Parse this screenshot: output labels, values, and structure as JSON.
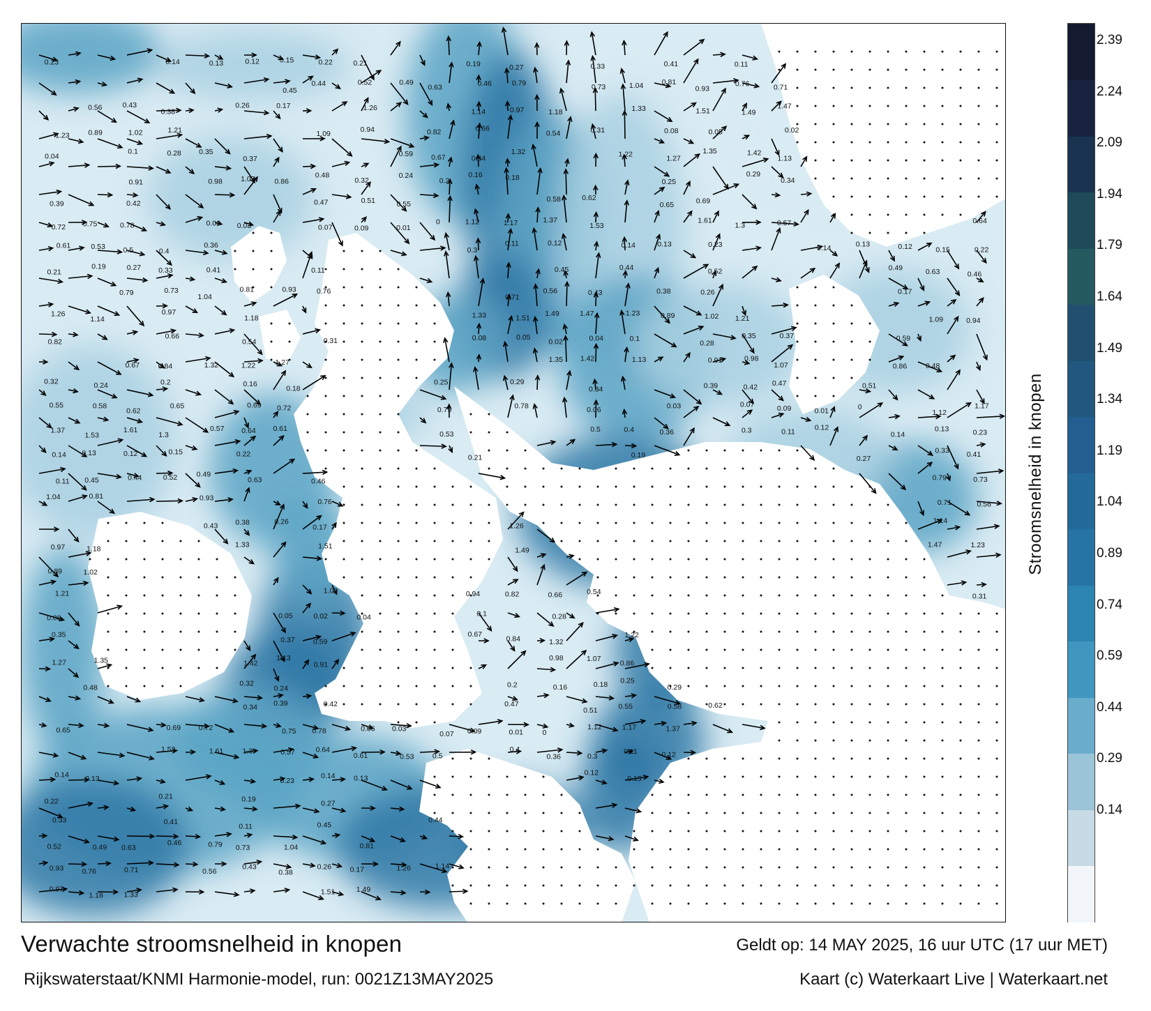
{
  "title": "Verwachte stroomsnelheid in knopen",
  "subtitle": "Rijkswaterstaat/KNMI Harmonie-model, run: 0021Z13MAY2025",
  "valid_time": "Geldt op: 14 MAY 2025, 16 uur UTC (17 uur MET)",
  "credit": "Kaart (c) Waterkaart Live | Waterkaart.net",
  "colorbar": {
    "label": "Stroomsnelheid in knopen",
    "ticks": [
      "2.39",
      "2.24",
      "2.09",
      "1.94",
      "1.79",
      "1.64",
      "1.49",
      "1.34",
      "1.19",
      "1.04",
      "0.89",
      "0.74",
      "0.59",
      "0.44",
      "0.29",
      "0.14"
    ],
    "colors": [
      "#f2f6fa",
      "#c6dbe6",
      "#9cc4d8",
      "#6aaccb",
      "#3f97bf",
      "#2b84b1",
      "#2674a4",
      "#236a9b",
      "#245e90",
      "#22577f",
      "#214f6f",
      "#245a60",
      "#1e4a5a",
      "#1a3350",
      "#18243f",
      "#141a30"
    ]
  },
  "map_colors": {
    "deep": "#2f78a6",
    "mid": "#5aa3c4",
    "light": "#a9d0e2",
    "pale": "#d9ebf3",
    "land": "#ffffff",
    "arrow": "#000000"
  },
  "speed_labels": [
    {
      "t": "0.23"
    },
    {
      "t": "0.14"
    },
    {
      "t": "0.13"
    },
    {
      "t": "0.12"
    },
    {
      "t": "0.15"
    },
    {
      "t": "0.22"
    },
    {
      "t": "0.21"
    },
    {
      "t": "0.19"
    },
    {
      "t": "0.27"
    },
    {
      "t": "0.33"
    },
    {
      "t": "0.41"
    },
    {
      "t": "0.11"
    },
    {
      "t": "0.45"
    },
    {
      "t": "0.44"
    },
    {
      "t": "0.52"
    },
    {
      "t": "0.49"
    },
    {
      "t": "0.63"
    },
    {
      "t": "0.46"
    },
    {
      "t": "0.79"
    },
    {
      "t": "0.73"
    },
    {
      "t": "1.04"
    },
    {
      "t": "0.81"
    },
    {
      "t": "0.93"
    },
    {
      "t": "0.76"
    },
    {
      "t": "0.71"
    },
    {
      "t": "0.56"
    },
    {
      "t": "0.43"
    },
    {
      "t": "0.38"
    },
    {
      "t": "0.26"
    },
    {
      "t": "0.17"
    },
    {
      "t": "1.26"
    },
    {
      "t": "1.14"
    },
    {
      "t": "0.97"
    },
    {
      "t": "1.18"
    },
    {
      "t": "1.33"
    },
    {
      "t": "1.51"
    },
    {
      "t": "1.49"
    },
    {
      "t": "1.47"
    },
    {
      "t": "1.23"
    },
    {
      "t": "0.89"
    },
    {
      "t": "1.02"
    },
    {
      "t": "1.21"
    },
    {
      "t": "1.09"
    },
    {
      "t": "0.94"
    },
    {
      "t": "0.82"
    },
    {
      "t": "0.66"
    },
    {
      "t": "0.54"
    },
    {
      "t": "0.31"
    },
    {
      "t": "0.08"
    },
    {
      "t": "0.05"
    },
    {
      "t": "0.02"
    },
    {
      "t": "0.04"
    },
    {
      "t": "0.1"
    },
    {
      "t": "0.28"
    },
    {
      "t": "0.35"
    },
    {
      "t": "0.37"
    },
    {
      "t": "0.59"
    },
    {
      "t": "0.67"
    },
    {
      "t": "0.84"
    },
    {
      "t": "1.32"
    },
    {
      "t": "1.22"
    },
    {
      "t": "1.27"
    },
    {
      "t": "1.35"
    },
    {
      "t": "1.42"
    },
    {
      "t": "1.13"
    },
    {
      "t": "0.91"
    },
    {
      "t": "0.98"
    },
    {
      "t": "1.07"
    },
    {
      "t": "0.86"
    },
    {
      "t": "0.48"
    },
    {
      "t": "0.32"
    },
    {
      "t": "0.24"
    },
    {
      "t": "0.2"
    },
    {
      "t": "0.16"
    },
    {
      "t": "0.18"
    },
    {
      "t": "0.25"
    },
    {
      "t": "0.29"
    },
    {
      "t": "0.34"
    },
    {
      "t": "0.39"
    },
    {
      "t": "0.42"
    },
    {
      "t": "0.47"
    },
    {
      "t": "0.51"
    },
    {
      "t": "0.55"
    },
    {
      "t": "0.58"
    },
    {
      "t": "0.62"
    },
    {
      "t": "0.65"
    },
    {
      "t": "0.69"
    },
    {
      "t": "0.72"
    },
    {
      "t": "0.75"
    },
    {
      "t": "0.78"
    },
    {
      "t": "0.06"
    },
    {
      "t": "0.03"
    },
    {
      "t": "0.07"
    },
    {
      "t": "0.09"
    },
    {
      "t": "0.01"
    },
    {
      "t": "0"
    },
    {
      "t": "1.12"
    },
    {
      "t": "1.17"
    },
    {
      "t": "1.37"
    },
    {
      "t": "1.53"
    },
    {
      "t": "1.61"
    },
    {
      "t": "1.3"
    },
    {
      "t": "0.57"
    },
    {
      "t": "0.64"
    },
    {
      "t": "0.61"
    },
    {
      "t": "0.53"
    },
    {
      "t": "0.5"
    },
    {
      "t": "0.4"
    },
    {
      "t": "0.36"
    },
    {
      "t": "0.3"
    },
    {
      "t": "0.11"
    },
    {
      "t": "0.12"
    },
    {
      "t": "0.14"
    },
    {
      "t": "0.13"
    }
  ]
}
